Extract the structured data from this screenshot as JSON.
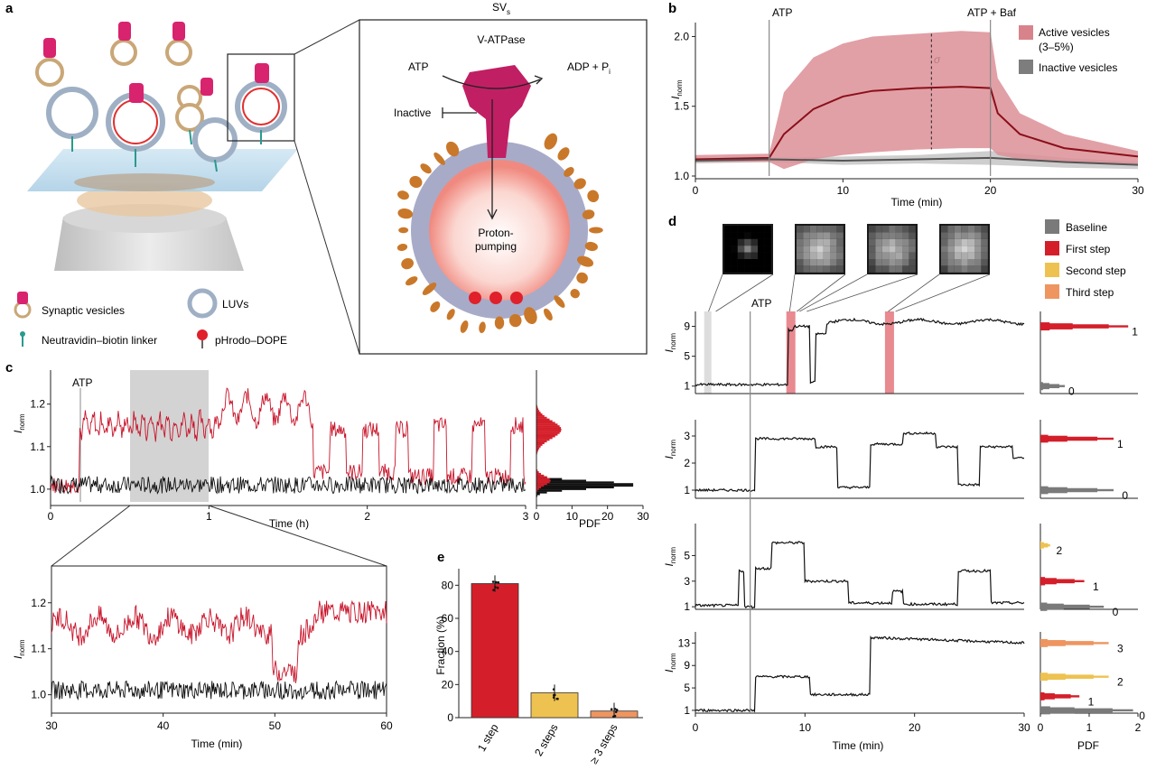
{
  "panels": {
    "a": "a",
    "b": "b",
    "c": "c",
    "d": "d",
    "e": "e"
  },
  "panel_a": {
    "sv_label": "SV",
    "sv_sub": "s",
    "vatpase_label": "V-ATPase",
    "atp_label": "ATP",
    "adp_label": "ADP + P",
    "adp_sub": "i",
    "inactive_label": "Inactive",
    "pumping_label": "Proton-\npumping",
    "legend": {
      "synaptic_vesicles": "Synaptic vesicles",
      "luvs": "LUVs",
      "linker": "Neutravidin–biotin linker",
      "pHrodo": "pHrodo–DOPE"
    },
    "colors": {
      "vatpase": "#c8236a",
      "membrane": "#9aa0c0",
      "lipid": "#c9782a",
      "dye": "#e0202a"
    }
  },
  "panel_b": {
    "title_atp": "ATP",
    "title_atp_baf": "ATP + Baf",
    "xlabel": "Time (min)",
    "ylabel": "I",
    "ylabel_sub": "norm",
    "sigma": "σ",
    "legend_active": "Active vesicles",
    "legend_active2": "(3–5%)",
    "legend_inactive": "Inactive vesicles",
    "xticks": [
      "0",
      "10",
      "20",
      "30"
    ],
    "yticks": [
      "1.0",
      "1.5",
      "2.0"
    ]
  },
  "panel_c": {
    "atp": "ATP",
    "xlabel": "Time (h)",
    "ylabel": "I",
    "ylabel_sub": "norm",
    "xticks": [
      "0",
      "1",
      "2",
      "3"
    ],
    "yticks": [
      "1.0",
      "1.1",
      "1.2"
    ],
    "pdf_label": "PDF",
    "pdf_ticks": [
      "0",
      "10",
      "20",
      "30"
    ],
    "zoom_xlabel": "Time (min)",
    "zoom_xticks": [
      "30",
      "40",
      "50",
      "60"
    ]
  },
  "panel_d": {
    "atp": "ATP",
    "xlabel": "Time (min)",
    "pdf_label": "PDF",
    "pdf_ticks": [
      "0",
      "1",
      "2"
    ],
    "xticks": [
      "0",
      "10",
      "20",
      "30"
    ],
    "ylabel": "I",
    "ylabel_sub": "norm",
    "legend": [
      {
        "label": "Baseline",
        "color": "#7a7a7a"
      },
      {
        "label": "First step",
        "color": "#d41f2a"
      },
      {
        "label": "Second step",
        "color": "#eec251"
      },
      {
        "label": "Third step",
        "color": "#ee9560"
      }
    ],
    "rows": [
      {
        "yticks": [
          "1",
          "5",
          "9"
        ],
        "hist_labels": [
          "1",
          "0"
        ]
      },
      {
        "yticks": [
          "1",
          "2",
          "3"
        ],
        "hist_labels": [
          "1",
          "0"
        ]
      },
      {
        "yticks": [
          "1",
          "3",
          "5"
        ],
        "hist_labels": [
          "2",
          "1",
          "0"
        ]
      },
      {
        "yticks": [
          "1",
          "5",
          "9",
          "13"
        ],
        "hist_labels": [
          "3",
          "2",
          "1",
          "0"
        ]
      }
    ]
  },
  "chart_data": [
    {
      "id": "b",
      "type": "line",
      "title": "",
      "xlabel": "Time (min)",
      "ylabel": "I_norm",
      "xlim": [
        0,
        30
      ],
      "ylim": [
        1.0,
        2.1
      ],
      "series": [
        {
          "name": "Active vesicles (3–5%)",
          "x": [
            0,
            5,
            6,
            8,
            10,
            12,
            15,
            18,
            20,
            20.5,
            22,
            25,
            30
          ],
          "values": [
            1.12,
            1.13,
            1.3,
            1.48,
            1.57,
            1.61,
            1.63,
            1.64,
            1.63,
            1.45,
            1.3,
            1.2,
            1.14
          ],
          "upper": [
            1.15,
            1.16,
            1.6,
            1.85,
            1.95,
            2.0,
            2.02,
            2.04,
            2.03,
            1.7,
            1.45,
            1.3,
            1.18
          ],
          "lower": [
            1.1,
            1.1,
            1.05,
            1.12,
            1.15,
            1.17,
            1.19,
            1.2,
            1.2,
            1.15,
            1.12,
            1.1,
            1.08
          ]
        },
        {
          "name": "Inactive vesicles",
          "x": [
            0,
            5,
            10,
            15,
            20,
            25,
            30
          ],
          "values": [
            1.11,
            1.12,
            1.11,
            1.12,
            1.13,
            1.1,
            1.08
          ],
          "upper": [
            1.13,
            1.13,
            1.14,
            1.15,
            1.18,
            1.13,
            1.1
          ],
          "lower": [
            1.09,
            1.1,
            1.08,
            1.09,
            1.08,
            1.06,
            1.05
          ]
        }
      ],
      "annotations": [
        "ATP at 5 min",
        "ATP + Baf at 20 min"
      ]
    },
    {
      "id": "e",
      "type": "bar",
      "title": "",
      "xlabel": "",
      "ylabel": "Fraction (%)",
      "categories": [
        "1 step",
        "2 steps",
        "≥ 3 steps"
      ],
      "values": [
        81,
        15,
        4
      ],
      "colors": [
        "#d41f2a",
        "#eec251",
        "#ee9560"
      ],
      "yticks": [
        "0",
        "20",
        "40",
        "60",
        "80"
      ],
      "ylim": [
        0,
        90
      ]
    }
  ]
}
